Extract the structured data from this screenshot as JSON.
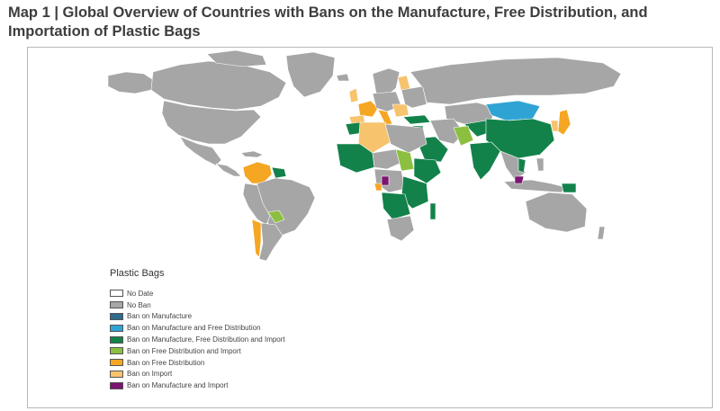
{
  "title": "Map 1 | Global Overview of Countries with Bans on the Manufacture, Free Distribution, and Importation of Plastic Bags",
  "legend": {
    "title": "Plastic Bags",
    "items": [
      {
        "label": "No Date",
        "color": "#ffffff"
      },
      {
        "label": "No Ban",
        "color": "#a6a6a6"
      },
      {
        "label": "Ban on Manufacture",
        "color": "#2e6b8e"
      },
      {
        "label": "Ban on Manufacture and Free Distribution",
        "color": "#2fa4d4"
      },
      {
        "label": "Ban on Manufacture, Free Distribution and Import",
        "color": "#12824a"
      },
      {
        "label": "Ban on Free Distribution and Import",
        "color": "#8cbf3f"
      },
      {
        "label": "Ban on Free Distribution",
        "color": "#f5a623"
      },
      {
        "label": "Ban on Import",
        "color": "#f7c36d"
      },
      {
        "label": "Ban on Manufacture and Import",
        "color": "#7b1570"
      }
    ]
  }
}
